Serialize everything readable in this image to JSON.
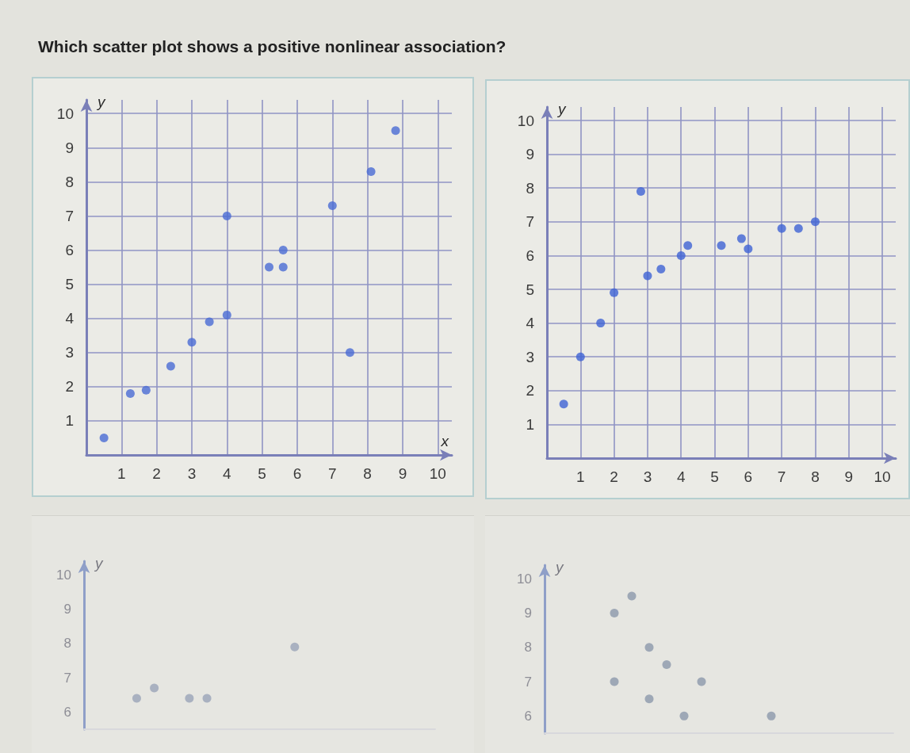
{
  "chart_data": [
    {
      "type": "scatter",
      "title": "Which scatter plot shows a positive nonlinear association?",
      "xlabel": "x",
      "ylabel": "y",
      "x": [
        0.5,
        1.25,
        1.7,
        2.4,
        3,
        3.5,
        4,
        4,
        5.2,
        5.6,
        5.6,
        7,
        7.5,
        8.1,
        8.8
      ],
      "values": [
        0.5,
        1.8,
        1.9,
        2.6,
        3.3,
        3.9,
        4.1,
        7,
        5.5,
        5.5,
        6,
        7.3,
        3,
        8.3,
        9.5
      ],
      "color": "#4a6bd5",
      "xlim": [
        0,
        10.4
      ],
      "ylim": [
        0,
        10.4
      ],
      "xticks": [
        1,
        2,
        3,
        4,
        5,
        6,
        7,
        8,
        9,
        10
      ],
      "yticks": [
        1,
        2,
        3,
        4,
        5,
        6,
        7,
        8,
        9,
        10
      ],
      "grid": true,
      "marker": "circle"
    },
    {
      "type": "scatter",
      "ylabel": "y",
      "x": [
        0.5,
        1,
        1.6,
        2,
        2.8,
        3,
        3.4,
        4,
        4.2,
        5.2,
        5.8,
        6,
        7,
        7.5,
        8
      ],
      "values": [
        1.6,
        3,
        4,
        4.9,
        7.9,
        5.4,
        5.6,
        6,
        6.3,
        6.3,
        6.5,
        6.2,
        6.8,
        6.8,
        7
      ],
      "color": "#3e63d4",
      "xlim": [
        0,
        10.4
      ],
      "ylim": [
        0,
        10.4
      ],
      "xticks": [
        1,
        2,
        3,
        4,
        5,
        6,
        7,
        8,
        9,
        10
      ],
      "yticks": [
        1,
        2,
        3,
        4,
        5,
        6,
        7,
        8,
        9,
        10
      ],
      "grid": true,
      "marker": "circle"
    },
    {
      "type": "scatter",
      "ylabel": "y",
      "categories": [
        null,
        null,
        null,
        null,
        null,
        null,
        null,
        null,
        null,
        null,
        null,
        null,
        null,
        null,
        null,
        null,
        null,
        null,
        null,
        null,
        null
      ],
      "values": [
        null,
        null,
        null,
        6.4,
        6.7,
        null,
        6.4,
        6.4,
        null,
        null,
        null,
        null,
        7.9,
        null,
        null,
        null,
        null,
        null,
        null,
        null,
        null
      ],
      "color": "#9aa4b8",
      "ylim": [
        5.5,
        10.4
      ],
      "yticks": [
        6,
        7,
        8,
        9,
        10
      ],
      "tick_labels": "y",
      "marker": "circle"
    },
    {
      "type": "scatter",
      "ylabel": "y",
      "categories": [
        null,
        null,
        null,
        null,
        null,
        null,
        null,
        null,
        null,
        null,
        null,
        null,
        null,
        null,
        null,
        null,
        null,
        null,
        null,
        null,
        null
      ],
      "series": [
        {
          "color": "#8c99ab",
          "values": [
            null,
            null,
            null,
            null,
            9,
            9.5,
            8,
            7.5,
            6,
            7,
            null,
            null,
            null,
            6,
            null,
            null,
            null,
            null,
            null,
            null,
            null
          ]
        },
        {
          "color": "#8c99ab",
          "values": [
            null,
            null,
            null,
            null,
            7,
            null,
            6.5,
            null,
            null,
            null,
            null,
            null,
            null,
            null,
            null,
            null,
            null,
            null,
            null,
            null,
            null
          ]
        }
      ],
      "ylim": [
        5.5,
        10.4
      ],
      "yticks": [
        6,
        7,
        8,
        9,
        10
      ],
      "tick_labels": "y",
      "marker": "circle"
    }
  ]
}
